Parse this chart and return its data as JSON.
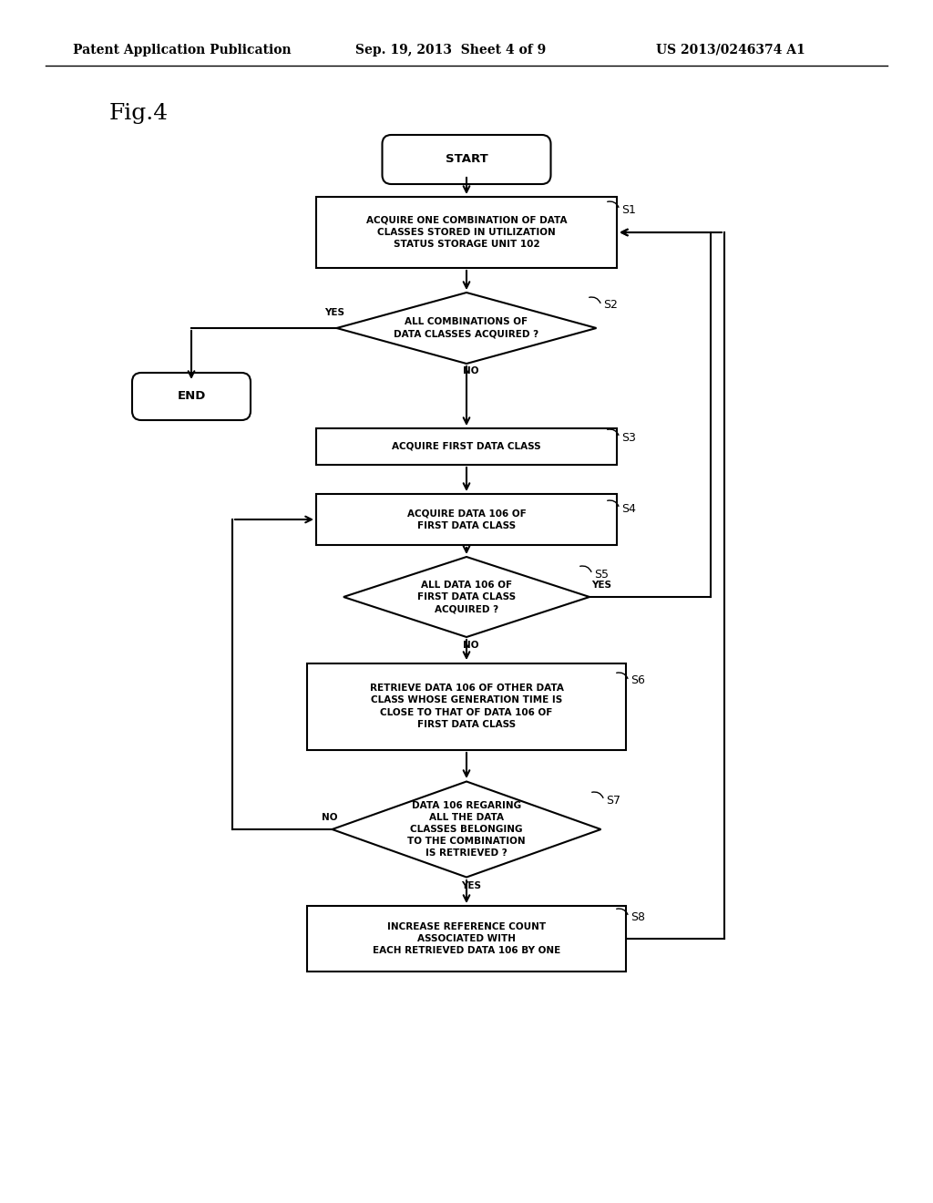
{
  "title_left": "Patent Application Publication",
  "title_mid": "Sep. 19, 2013  Sheet 4 of 9",
  "title_right": "US 2013/0246374 A1",
  "fig_label": "Fig.4",
  "background_color": "#ffffff",
  "line_color": "#000000",
  "text_color": "#000000",
  "font_size_header": 10,
  "font_size_node": 7.5,
  "font_size_label": 9,
  "font_size_fig": 18
}
